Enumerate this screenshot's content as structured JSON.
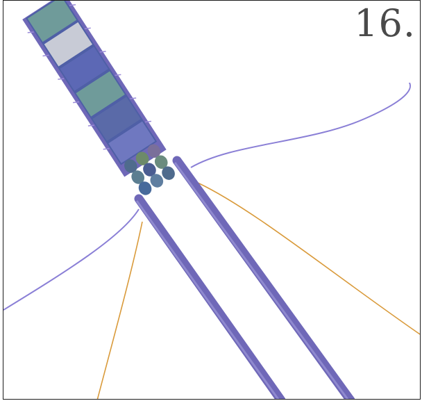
{
  "step_label": "16.",
  "colors": {
    "cord": "#6f68b8",
    "cord_highlight": "#8f89cf",
    "blue_thread": "#8a7fd6",
    "gold_thread": "#d99a3a",
    "tile_bead_blue": "#5c68b5",
    "tile_bead_teal": "#6f9b9a",
    "tile_bead_silver": "#c8cbd6",
    "seed_bead_iris": "#4f6b8d"
  }
}
